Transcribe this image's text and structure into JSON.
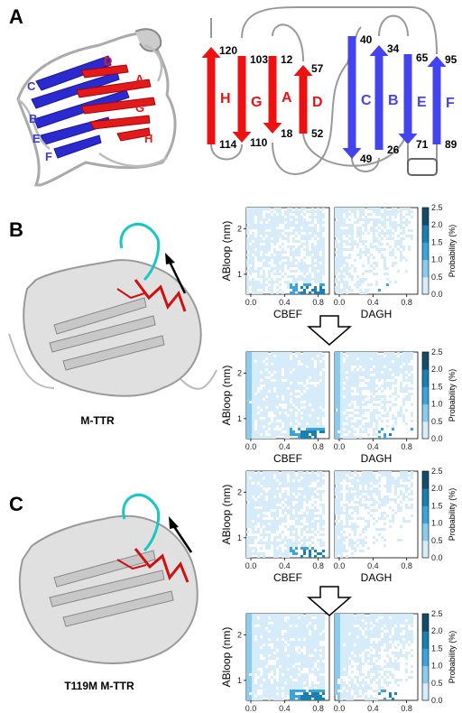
{
  "panels": {
    "A": "A",
    "B": "B",
    "C": "C"
  },
  "structure_labels": {
    "B": "M-TTR",
    "C": "T119M M-TTR"
  },
  "ribbon_labels": [
    {
      "text": "D",
      "color": "#e31a1c"
    },
    {
      "text": "A",
      "color": "#e31a1c"
    },
    {
      "text": "C",
      "color": "#3b3bd6"
    },
    {
      "text": "G",
      "color": "#e31a1c"
    },
    {
      "text": "B",
      "color": "#3b3bd6"
    },
    {
      "text": "E",
      "color": "#3b3bd6"
    },
    {
      "text": "H",
      "color": "#e31a1c"
    },
    {
      "text": "F",
      "color": "#3b3bd6"
    }
  ],
  "topology": {
    "strands": [
      {
        "name": "H",
        "top": "120",
        "bottom": "114",
        "dir": "up",
        "color": "#ee1111"
      },
      {
        "name": "G",
        "top": "103",
        "bottom": "110",
        "dir": "down",
        "color": "#ee1111"
      },
      {
        "name": "A",
        "top": "12",
        "bottom": "18",
        "dir": "down",
        "color": "#ee1111"
      },
      {
        "name": "D",
        "top": "57",
        "bottom": "52",
        "dir": "up",
        "color": "#ee1111"
      },
      {
        "name": "C",
        "top": "40",
        "bottom": "49",
        "dir": "down",
        "color": "#4444ee"
      },
      {
        "name": "B",
        "top": "34",
        "bottom": "26",
        "dir": "up",
        "color": "#4444ee"
      },
      {
        "name": "E",
        "top": "65",
        "bottom": "71",
        "dir": "down",
        "color": "#4444ee"
      },
      {
        "name": "F",
        "top": "95",
        "bottom": "89",
        "dir": "up",
        "color": "#4444ee"
      }
    ]
  },
  "heatmap_axes": {
    "y_label": "ABloop (nm)",
    "x_labels": [
      "CBEF",
      "DAGH"
    ],
    "y_ticks": [
      "1",
      "2"
    ],
    "x_ticks": [
      "0.0",
      "0.4",
      "0.8"
    ],
    "colorbar_label": "Probability (%)",
    "colorbar_ticks": [
      "0.0",
      "0.5",
      "1.0",
      "1.5",
      "2.0",
      "2.5"
    ],
    "colormap": [
      "#d6ecfa",
      "#8ccbf0",
      "#3aa5dc",
      "#1b7fb0",
      "#134d6b"
    ]
  }
}
